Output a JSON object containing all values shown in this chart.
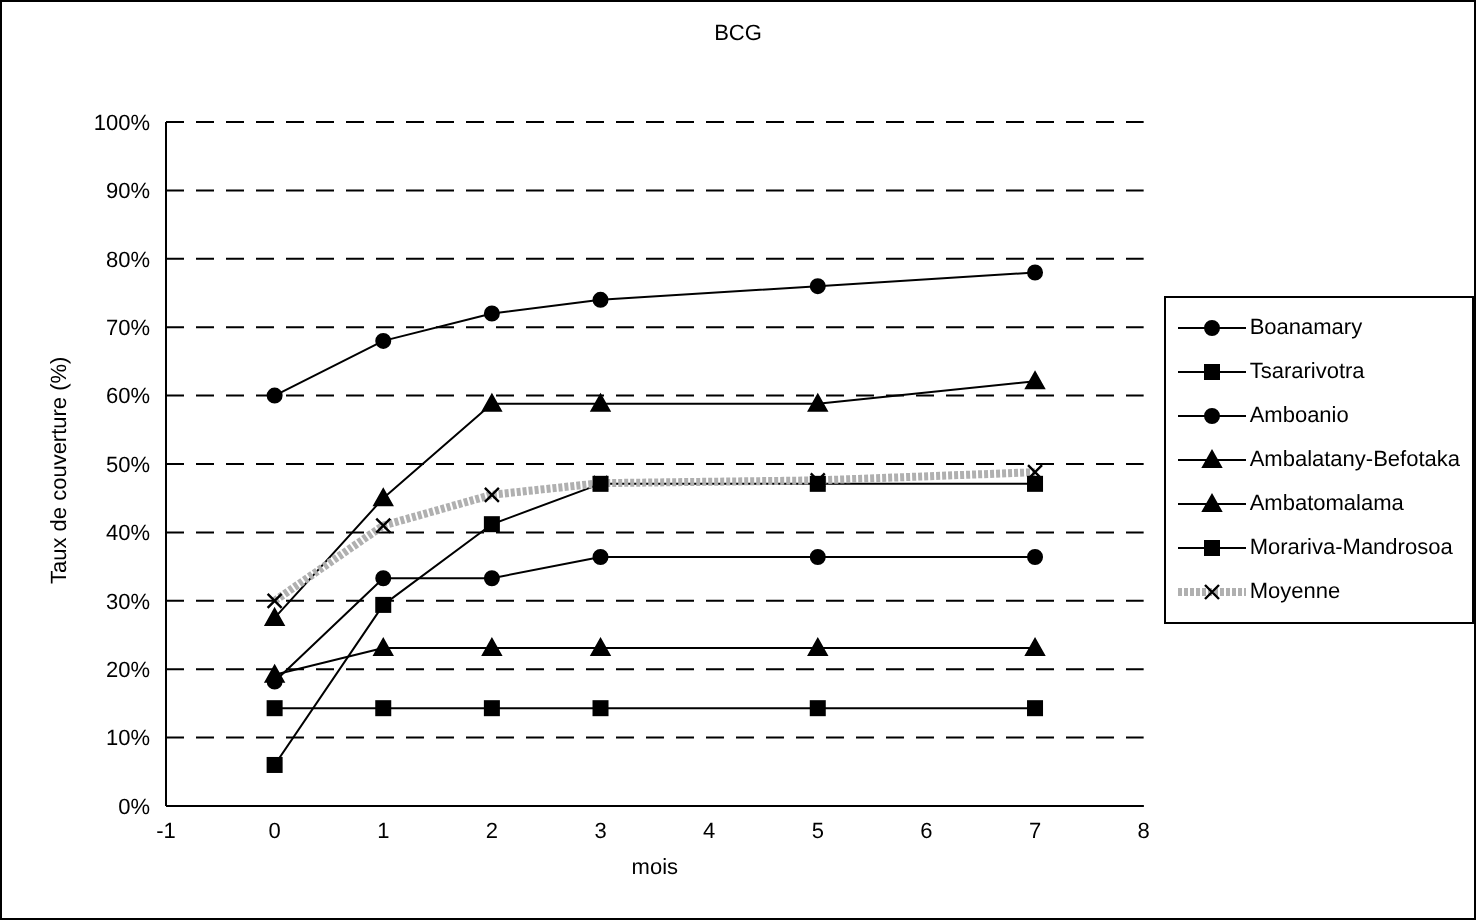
{
  "chart_data": {
    "type": "line",
    "title": "BCG",
    "xlabel": "mois",
    "ylabel": "Taux de couverture (%)",
    "x": [
      0,
      1,
      2,
      3,
      5,
      7
    ],
    "xlim": [
      -1,
      8
    ],
    "xticks": [
      -1,
      0,
      1,
      2,
      3,
      4,
      5,
      6,
      7,
      8
    ],
    "ylim": [
      0,
      100
    ],
    "yticks": [
      {
        "value": 0,
        "label": "0%"
      },
      {
        "value": 10,
        "label": "10%"
      },
      {
        "value": 20,
        "label": "20%"
      },
      {
        "value": 30,
        "label": "30%"
      },
      {
        "value": 40,
        "label": "40%"
      },
      {
        "value": 50,
        "label": "50%"
      },
      {
        "value": 60,
        "label": "60%"
      },
      {
        "value": 70,
        "label": "70%"
      },
      {
        "value": 80,
        "label": "80%"
      },
      {
        "value": 90,
        "label": "90%"
      },
      {
        "value": 100,
        "label": "100%"
      }
    ],
    "grid": "y",
    "legend": "right",
    "line_style": "solid",
    "series": [
      {
        "name": "Boanamary",
        "color": "#000000",
        "marker": "circle",
        "values": [
          60,
          68,
          72,
          74,
          76,
          78
        ]
      },
      {
        "name": "Tsararivotra",
        "color": "#000000",
        "marker": "square",
        "values": [
          6,
          29.4,
          41.2,
          47.1,
          47.1,
          47.1
        ]
      },
      {
        "name": "Amboanio",
        "color": "#000000",
        "marker": "circle",
        "values": [
          18.2,
          33.3,
          33.3,
          36.4,
          36.4,
          36.4
        ]
      },
      {
        "name": "Ambalatany-Befotaka",
        "color": "#000000",
        "marker": "triangle",
        "values": [
          27.5,
          45,
          58.8,
          58.8,
          58.8,
          62.1
        ]
      },
      {
        "name": "Ambatomalama",
        "color": "#000000",
        "marker": "triangle",
        "values": [
          19.2,
          23.1,
          23.1,
          23.1,
          23.1,
          23.1
        ]
      },
      {
        "name": "Morariva-Mandrosoa",
        "color": "#000000",
        "marker": "square",
        "values": [
          14.3,
          14.3,
          14.3,
          14.3,
          14.3,
          14.3
        ]
      },
      {
        "name": "Moyenne",
        "color": "#b0b0b0",
        "marker": "cross",
        "line_style": "dotted",
        "values": [
          30,
          41,
          45.5,
          47.2,
          47.6,
          48.8
        ]
      }
    ]
  }
}
